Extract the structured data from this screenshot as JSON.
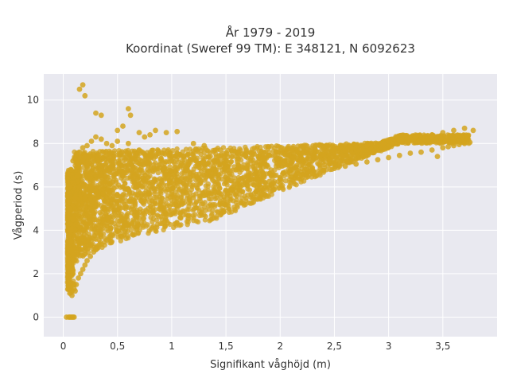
{
  "chart_data": {
    "type": "scatter",
    "title": [
      "År 1979 - 2019",
      "Koordinat (Sweref 99 TM): E 348121, N 6092623"
    ],
    "xlabel": "Signifikant våghöjd (m)",
    "ylabel": "Vågperiod (s)",
    "xlim": [
      -0.18,
      4.0
    ],
    "ylim": [
      -0.9,
      11.2
    ],
    "xticks": [
      0,
      0.5,
      1,
      1.5,
      2,
      2.5,
      3,
      3.5
    ],
    "xtick_labels": [
      "0",
      "0,5",
      "1",
      "1,5",
      "2",
      "2,5",
      "3",
      "3,5"
    ],
    "yticks": [
      0,
      2,
      4,
      6,
      8,
      10
    ],
    "ytick_labels": [
      "0",
      "2",
      "4",
      "6",
      "8",
      "10"
    ],
    "grid": true,
    "legend": false,
    "colors": {
      "marker": "#d4a41f",
      "plot_bg": "#e9e9f0",
      "grid": "#ffffff"
    },
    "series": [
      {
        "x": [
          0.03,
          0.05,
          0.06,
          0.07,
          0.08,
          0.09,
          0.1,
          0.04,
          0.06,
          0.08,
          0.05,
          0.07,
          0.09,
          0.11,
          0.13,
          0.06,
          0.08,
          0.1,
          0.12,
          0.14,
          0.16,
          0.18,
          0.2,
          0.22,
          0.25,
          0.28,
          0.3,
          0.32,
          0.35,
          0.4,
          0.45,
          0.5,
          0.55,
          0.6,
          0.65,
          0.7,
          0.8,
          0.9,
          1.0,
          1.1,
          1.2,
          1.3,
          1.4,
          1.5,
          1.6,
          1.7,
          1.8,
          1.9,
          2.0,
          2.1,
          2.2,
          2.3,
          2.4,
          2.5,
          2.6,
          2.7,
          2.8,
          2.9,
          3.0,
          3.1,
          3.2,
          3.3,
          3.4,
          3.5,
          3.55,
          3.6,
          3.65,
          3.7,
          3.75,
          0.07,
          0.09,
          0.12,
          0.15,
          0.18,
          0.22,
          0.26,
          0.3,
          0.35,
          0.4,
          0.45,
          0.5,
          0.6,
          0.7,
          0.8,
          0.9,
          1.0,
          1.1,
          1.25,
          0.15,
          0.18,
          0.2,
          0.3,
          0.35,
          0.5,
          0.55,
          0.6,
          0.62,
          0.7,
          0.75,
          0.8,
          0.85,
          0.95,
          1.05,
          1.2,
          1.3,
          1.45,
          1.6,
          1.75,
          1.9,
          2.05,
          2.2,
          2.35,
          2.5,
          2.65,
          2.8,
          2.95,
          3.1,
          3.25,
          3.4,
          3.45,
          3.5,
          3.6,
          3.7,
          3.78,
          0.05,
          0.06,
          0.07,
          0.08,
          0.09,
          0.1,
          0.11,
          0.2,
          0.25,
          0.3,
          0.4,
          0.5,
          0.6,
          0.7,
          0.8,
          0.9,
          1.0,
          1.2,
          1.4,
          1.6,
          1.8,
          2.0,
          2.2,
          2.4,
          2.6,
          2.8,
          3.0,
          3.2,
          3.4
        ],
        "y": [
          0.0,
          0.0,
          0.0,
          0.0,
          0.0,
          0.0,
          0.0,
          1.6,
          1.5,
          1.2,
          2.5,
          3.5,
          4.5,
          5.5,
          6.5,
          1.1,
          1.0,
          1.3,
          1.5,
          1.8,
          2.0,
          2.2,
          2.4,
          2.6,
          2.8,
          3.0,
          3.1,
          3.2,
          3.35,
          3.55,
          3.8,
          3.95,
          4.1,
          4.25,
          4.4,
          4.55,
          4.8,
          5.0,
          5.2,
          5.35,
          5.5,
          5.6,
          5.75,
          5.85,
          5.95,
          6.05,
          6.15,
          6.25,
          6.35,
          6.45,
          6.55,
          6.65,
          6.75,
          6.85,
          6.95,
          7.05,
          7.15,
          7.25,
          7.35,
          7.45,
          7.55,
          7.6,
          7.7,
          7.8,
          7.85,
          7.9,
          7.95,
          8.0,
          8.05,
          6.8,
          7.2,
          7.5,
          7.6,
          7.8,
          7.9,
          8.1,
          8.3,
          8.2,
          8.0,
          7.9,
          8.1,
          8.0,
          7.7,
          7.5,
          7.3,
          7.2,
          7.0,
          6.9,
          10.5,
          10.7,
          10.2,
          9.4,
          9.3,
          8.6,
          8.8,
          9.6,
          9.3,
          8.5,
          8.3,
          8.4,
          8.6,
          8.5,
          8.55,
          8.0,
          7.9,
          7.7,
          7.6,
          7.5,
          7.45,
          7.5,
          7.55,
          7.6,
          7.7,
          7.8,
          7.9,
          8.0,
          8.15,
          8.3,
          8.4,
          7.4,
          8.5,
          8.6,
          8.7,
          8.6,
          6.0,
          5.0,
          4.0,
          3.0,
          2.0,
          1.5,
          1.2,
          5.5,
          6.0,
          5.8,
          5.5,
          5.6,
          5.9,
          6.1,
          6.0,
          5.8,
          6.2,
          6.5,
          6.6,
          6.8,
          7.0,
          7.1,
          7.3,
          7.5,
          7.7,
          7.9,
          8.1,
          8.2,
          8.3
        ]
      }
    ]
  }
}
